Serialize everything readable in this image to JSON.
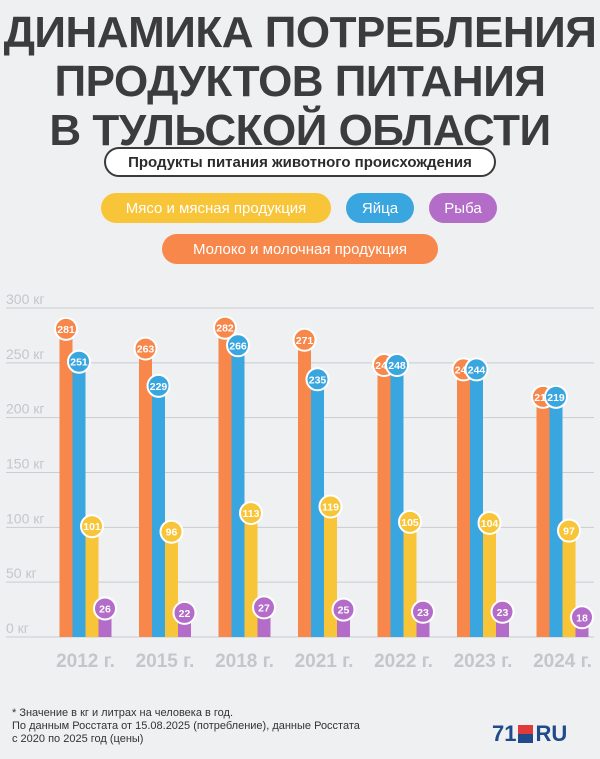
{
  "title": {
    "line1": "Динамика потребления",
    "line2": "продуктов питания",
    "line3": "в Тульской области"
  },
  "legend": {
    "category": "Продукты питания животного происхождения",
    "meat": "Мясо и мясная продукция",
    "eggs": "Яйца",
    "fish": "Рыба",
    "milk": "Молоко и молочная продукция"
  },
  "colors": {
    "milk": "#f7874a",
    "eggs": "#3aa6df",
    "meat": "#f8c438",
    "fish": "#b46cc9",
    "grid": "#c9ccd0",
    "tick": "#c4c6ca"
  },
  "chart_data": {
    "type": "bar",
    "title": "Динамика потребления продуктов питания в Тульской области",
    "categories": [
      "2012 г.",
      "2015 г.",
      "2018 г.",
      "2021 г.",
      "2022 г.",
      "2023 г.",
      "2024 г."
    ],
    "y_ticks": [
      "0 кг",
      "50 кг",
      "100 кг",
      "150 кг",
      "200 кг",
      "250 кг",
      "300 кг"
    ],
    "ylim": [
      0,
      300
    ],
    "grid": true,
    "series": [
      {
        "key": "milk",
        "name": "Молоко и молочная продукция",
        "values": [
          281,
          263,
          282,
          271,
          248,
          244,
          219
        ]
      },
      {
        "key": "eggs",
        "name": "Яйца",
        "values": [
          251,
          229,
          266,
          235,
          248,
          244,
          219
        ]
      },
      {
        "key": "meat",
        "name": "Мясо и мясная продукция",
        "values": [
          101,
          96,
          113,
          119,
          105,
          104,
          97
        ]
      },
      {
        "key": "fish",
        "name": "Рыба",
        "values": [
          26,
          22,
          27,
          25,
          23,
          23,
          18
        ]
      }
    ]
  },
  "footnote": {
    "line1": "* Значение в кг и литрах на человека в год.",
    "line2": "По данным Росстата от 15.08.2025 (потребление), данные Росстата",
    "line3": "с 2020 по 2025 год (цены)"
  },
  "logo": {
    "number": "71",
    "domain": "RU"
  }
}
